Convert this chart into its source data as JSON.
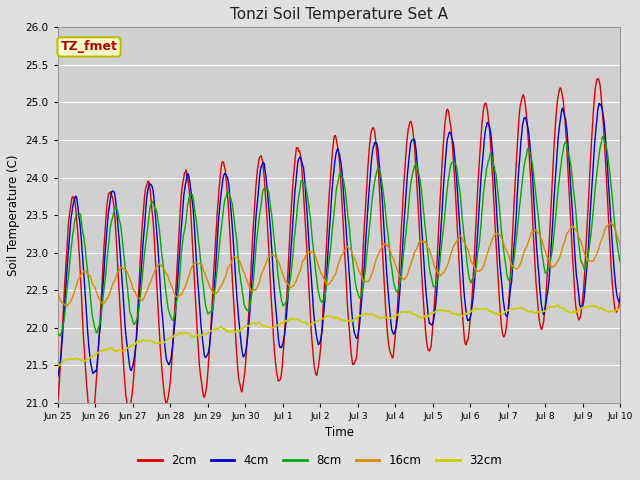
{
  "title": "Tonzi Soil Temperature Set A",
  "xlabel": "Time",
  "ylabel": "Soil Temperature (C)",
  "ylim": [
    21.0,
    26.0
  ],
  "yticks": [
    21.0,
    21.5,
    22.0,
    22.5,
    23.0,
    23.5,
    24.0,
    24.5,
    25.0,
    25.5,
    26.0
  ],
  "background_color": "#e0e0e0",
  "plot_bg_color": "#d0d0d0",
  "annotation_label": "TZ_fmet",
  "annotation_color": "#aa0000",
  "annotation_bg": "#ffffcc",
  "annotation_border": "#bbbb00",
  "colors": {
    "2cm": "#dd0000",
    "4cm": "#0000cc",
    "8cm": "#00aa00",
    "16cm": "#dd8800",
    "32cm": "#cccc00"
  },
  "legend_labels": [
    "2cm",
    "4cm",
    "8cm",
    "16cm",
    "32cm"
  ],
  "x_tick_labels": [
    "Jun 25",
    "Jun 26",
    "Jun 27",
    "Jun 28",
    "Jun 29",
    "Jun 30",
    "Jul 1",
    "Jul 2",
    "Jul 3",
    "Jul 4",
    "Jul 5",
    "Jul 6",
    "Jul 7",
    "Jul 8",
    "Jul 9",
    "Jul 10"
  ]
}
